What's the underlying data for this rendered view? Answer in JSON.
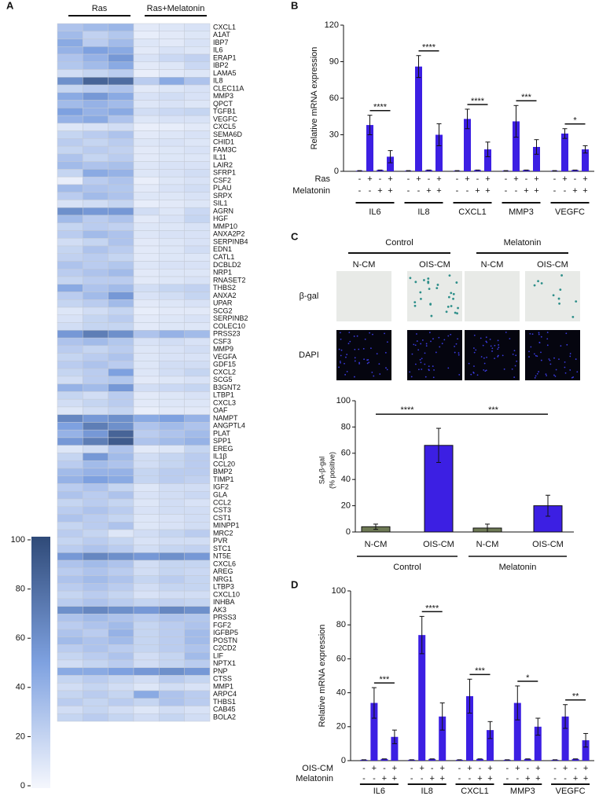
{
  "chart_data": [
    {
      "type": "heatmap",
      "panel": "A",
      "column_groups": [
        "Ras",
        "Ras+Melatonin"
      ],
      "rows": [
        "CXCL1",
        "A1AT",
        "IBP7",
        "IL6",
        "ERAP1",
        "IBP2",
        "LAMA5",
        "IL8",
        "CLEC11A",
        "MMP3",
        "QPCT",
        "TGFB1",
        "VEGFC",
        "CXCL5",
        "SEMA6D",
        "CHID1",
        "FAM3C",
        "IL11",
        "LAIR2",
        "SFRP1",
        "CSF2",
        "PLAU",
        "SRPX",
        "SIL1",
        "AGRN",
        "HGF",
        "MMP10",
        "ANXA2P2",
        "SERPINB4",
        "EDN1",
        "CATL1",
        "DCBLD2",
        "NRP1",
        "RNASET2",
        "THBS2",
        "ANXA2",
        "UPAR",
        "SCG2",
        "SERPINB2",
        "COLEC10",
        "PRSS23",
        "CSF3",
        "MMP9",
        "VEGFA",
        "GDF15",
        "CXCL2",
        "SCG5",
        "B3GNT2",
        "LTBP1",
        "CXCL3",
        "OAF",
        "NAMPT",
        "ANGPTL4",
        "PLAT",
        "SPP1",
        "EREG",
        "IL1β",
        "CCL20",
        "BMP2",
        "TIMP1",
        "IGF2",
        "GLA",
        "CCL2",
        "CST3",
        "CST1",
        "MINPP1",
        "MRC2",
        "PVR",
        "STC1",
        "NT5E",
        "CXCL6",
        "AREG",
        "NRG1",
        "LTBP3",
        "CXCL10",
        "INHBA",
        "AK3",
        "PRSS3",
        "FGF2",
        "IGFBP5",
        "POSTN",
        "C2CD2",
        "LIF",
        "NPTX1",
        "PNP",
        "CTSS",
        "MMP1",
        "ARPC4",
        "THBS1",
        "CAB45",
        "BOLA2"
      ],
      "values": [
        [
          30,
          35,
          38,
          8,
          10,
          12
        ],
        [
          35,
          22,
          28,
          6,
          8,
          10
        ],
        [
          45,
          25,
          35,
          10,
          8,
          12
        ],
        [
          40,
          50,
          45,
          8,
          12,
          10
        ],
        [
          30,
          40,
          55,
          12,
          18,
          22
        ],
        [
          28,
          35,
          45,
          8,
          10,
          18
        ],
        [
          15,
          20,
          25,
          5,
          8,
          10
        ],
        [
          60,
          85,
          80,
          25,
          45,
          30
        ],
        [
          20,
          25,
          30,
          8,
          10,
          12
        ],
        [
          45,
          55,
          45,
          12,
          15,
          12
        ],
        [
          35,
          40,
          35,
          10,
          12,
          10
        ],
        [
          50,
          40,
          45,
          15,
          18,
          20
        ],
        [
          40,
          45,
          30,
          10,
          12,
          12
        ],
        [
          10,
          12,
          15,
          5,
          6,
          8
        ],
        [
          20,
          25,
          30,
          8,
          10,
          12
        ],
        [
          25,
          20,
          25,
          10,
          12,
          10
        ],
        [
          20,
          25,
          22,
          8,
          10,
          12
        ],
        [
          30,
          20,
          25,
          8,
          10,
          10
        ],
        [
          35,
          30,
          32,
          10,
          12,
          12
        ],
        [
          20,
          45,
          40,
          10,
          12,
          15
        ],
        [
          5,
          25,
          30,
          5,
          10,
          12
        ],
        [
          35,
          30,
          28,
          8,
          12,
          15
        ],
        [
          25,
          35,
          30,
          10,
          10,
          12
        ],
        [
          12,
          15,
          20,
          6,
          8,
          10
        ],
        [
          60,
          55,
          55,
          15,
          10,
          18
        ],
        [
          35,
          25,
          30,
          8,
          12,
          20
        ],
        [
          20,
          25,
          22,
          10,
          10,
          12
        ],
        [
          25,
          35,
          30,
          10,
          12,
          12
        ],
        [
          15,
          20,
          30,
          8,
          10,
          12
        ],
        [
          20,
          30,
          25,
          8,
          10,
          15
        ],
        [
          22,
          25,
          20,
          8,
          10,
          10
        ],
        [
          30,
          25,
          28,
          10,
          12,
          12
        ],
        [
          25,
          30,
          35,
          8,
          10,
          10
        ],
        [
          20,
          25,
          25,
          8,
          10,
          12
        ],
        [
          45,
          30,
          35,
          15,
          20,
          22
        ],
        [
          25,
          35,
          55,
          12,
          15,
          20
        ],
        [
          20,
          25,
          35,
          8,
          10,
          12
        ],
        [
          10,
          15,
          20,
          6,
          8,
          8
        ],
        [
          12,
          20,
          25,
          8,
          10,
          12
        ],
        [
          15,
          20,
          20,
          8,
          10,
          10
        ],
        [
          55,
          70,
          60,
          30,
          40,
          35
        ],
        [
          30,
          35,
          28,
          12,
          15,
          12
        ],
        [
          25,
          20,
          25,
          10,
          12,
          15
        ],
        [
          20,
          25,
          30,
          10,
          12,
          12
        ],
        [
          25,
          30,
          25,
          10,
          15,
          15
        ],
        [
          20,
          25,
          50,
          10,
          15,
          20
        ],
        [
          15,
          25,
          28,
          8,
          10,
          12
        ],
        [
          40,
          35,
          55,
          15,
          18,
          20
        ],
        [
          20,
          15,
          25,
          8,
          10,
          12
        ],
        [
          15,
          20,
          25,
          8,
          10,
          10
        ],
        [
          10,
          15,
          20,
          5,
          8,
          8
        ],
        [
          65,
          55,
          60,
          45,
          50,
          40
        ],
        [
          50,
          70,
          60,
          30,
          35,
          30
        ],
        [
          40,
          55,
          85,
          25,
          30,
          35
        ],
        [
          55,
          70,
          90,
          30,
          35,
          40
        ],
        [
          10,
          15,
          30,
          8,
          10,
          20
        ],
        [
          20,
          55,
          35,
          15,
          20,
          25
        ],
        [
          25,
          35,
          30,
          15,
          20,
          25
        ],
        [
          35,
          40,
          40,
          20,
          25,
          25
        ],
        [
          40,
          50,
          45,
          20,
          25,
          22
        ],
        [
          25,
          30,
          20,
          10,
          15,
          15
        ],
        [
          30,
          25,
          30,
          12,
          15,
          18
        ],
        [
          20,
          25,
          20,
          10,
          15,
          12
        ],
        [
          25,
          30,
          25,
          12,
          15,
          15
        ],
        [
          30,
          25,
          20,
          10,
          12,
          15
        ],
        [
          20,
          25,
          30,
          10,
          12,
          15
        ],
        [
          25,
          20,
          10,
          15,
          20,
          25
        ],
        [
          20,
          25,
          20,
          12,
          15,
          15
        ],
        [
          25,
          30,
          25,
          15,
          20,
          22
        ],
        [
          55,
          65,
          60,
          55,
          60,
          55
        ],
        [
          30,
          35,
          30,
          15,
          20,
          20
        ],
        [
          25,
          30,
          25,
          15,
          20,
          18
        ],
        [
          30,
          35,
          30,
          20,
          25,
          20
        ],
        [
          25,
          30,
          25,
          15,
          20,
          20
        ],
        [
          20,
          25,
          20,
          12,
          15,
          15
        ],
        [
          25,
          30,
          25,
          20,
          22,
          20
        ],
        [
          60,
          65,
          60,
          55,
          65,
          60
        ],
        [
          30,
          35,
          30,
          25,
          30,
          28
        ],
        [
          25,
          30,
          35,
          20,
          25,
          30
        ],
        [
          30,
          25,
          40,
          20,
          25,
          35
        ],
        [
          35,
          30,
          35,
          20,
          25,
          35
        ],
        [
          25,
          30,
          25,
          20,
          25,
          30
        ],
        [
          20,
          25,
          30,
          15,
          20,
          35
        ],
        [
          15,
          20,
          25,
          15,
          20,
          25
        ],
        [
          45,
          45,
          50,
          55,
          60,
          55
        ],
        [
          20,
          25,
          20,
          15,
          25,
          20
        ],
        [
          15,
          20,
          15,
          10,
          15,
          12
        ],
        [
          20,
          25,
          20,
          45,
          30,
          25
        ],
        [
          25,
          20,
          25,
          20,
          30,
          25
        ],
        [
          15,
          20,
          15,
          10,
          15,
          12
        ],
        [
          20,
          25,
          20,
          15,
          20,
          15
        ]
      ],
      "zlim": [
        0,
        100
      ],
      "colorbar_ticks": [
        0,
        20,
        40,
        60,
        80,
        100
      ],
      "colorscale": [
        "#f5f7fd",
        "#7ea1e0",
        "#2f4a78"
      ]
    },
    {
      "type": "bar",
      "panel": "B",
      "ylabel": "Relative mRNA expression",
      "ylim": [
        0,
        120
      ],
      "yticks": [
        0,
        30,
        60,
        90,
        120
      ],
      "color": "#3c1fe3",
      "conditions": [
        {
          "label": "Ras",
          "signs": [
            "-",
            "+",
            "-",
            "+"
          ]
        },
        {
          "label": "Melatonin",
          "signs": [
            "-",
            "-",
            "+",
            "+"
          ]
        }
      ],
      "groups": [
        {
          "label": "IL6",
          "values": [
            0.5,
            38,
            1,
            12
          ],
          "errors": [
            0,
            8,
            0,
            5
          ],
          "significance": "****"
        },
        {
          "label": "IL8",
          "values": [
            0.5,
            86,
            1,
            30
          ],
          "errors": [
            0,
            9,
            0,
            9
          ],
          "significance": "****"
        },
        {
          "label": "CXCL1",
          "values": [
            0.5,
            43,
            1,
            18
          ],
          "errors": [
            0,
            8,
            0,
            6
          ],
          "significance": "****"
        },
        {
          "label": "MMP3",
          "values": [
            0.5,
            41,
            1,
            20
          ],
          "errors": [
            0,
            13,
            0,
            6
          ],
          "significance": "***"
        },
        {
          "label": "VEGFC",
          "values": [
            0.5,
            31,
            1,
            18
          ],
          "errors": [
            0,
            4,
            0,
            3
          ],
          "significance": "*"
        }
      ]
    },
    {
      "type": "bar",
      "panel": "C",
      "image_groups": [
        {
          "label": "Control",
          "items": [
            "N-CM",
            "OIS-CM"
          ]
        },
        {
          "label": "Melatonin",
          "items": [
            "N-CM",
            "OIS-CM"
          ]
        }
      ],
      "image_rows": [
        "β-gal",
        "DAPI"
      ],
      "ylabel": [
        "SA-β-gal",
        "(% positive)"
      ],
      "categories": [
        "N-CM",
        "OIS-CM",
        "N-CM",
        "OIS-CM"
      ],
      "groups": [
        "Control",
        "Melatonin"
      ],
      "values": [
        4,
        66,
        3,
        20
      ],
      "errors": [
        2,
        13,
        3,
        8
      ],
      "colors": [
        "#6e7a55",
        "#3c1fe3",
        "#6e7a55",
        "#3c1fe3"
      ],
      "ylim": [
        0,
        100
      ],
      "yticks": [
        0,
        20,
        40,
        60,
        80,
        100
      ],
      "comparisons": [
        {
          "between": [
            0,
            1
          ],
          "label": "****"
        },
        {
          "between": [
            1,
            3
          ],
          "label": "***"
        }
      ]
    },
    {
      "type": "bar",
      "panel": "D",
      "ylabel": "Relative mRNA expression",
      "ylim": [
        0,
        100
      ],
      "yticks": [
        0,
        20,
        40,
        60,
        80,
        100
      ],
      "color": "#3c1fe3",
      "conditions": [
        {
          "label": "OIS-CM",
          "signs": [
            "-",
            "+",
            "-",
            "+"
          ]
        },
        {
          "label": "Melatonin",
          "signs": [
            "-",
            "-",
            "+",
            "+"
          ]
        }
      ],
      "groups": [
        {
          "label": "IL6",
          "values": [
            0.5,
            34,
            1,
            14
          ],
          "errors": [
            0,
            9,
            0,
            4
          ],
          "significance": "***"
        },
        {
          "label": "IL8",
          "values": [
            0.5,
            74,
            1,
            26
          ],
          "errors": [
            0,
            11,
            0,
            8
          ],
          "significance": "****"
        },
        {
          "label": "CXCL1",
          "values": [
            0.5,
            38,
            1,
            18
          ],
          "errors": [
            0,
            10,
            0,
            5
          ],
          "significance": "***"
        },
        {
          "label": "MMP3",
          "values": [
            0.5,
            34,
            1,
            20
          ],
          "errors": [
            0,
            10,
            0,
            5
          ],
          "significance": "*"
        },
        {
          "label": "VEGFC",
          "values": [
            0.5,
            26,
            1,
            12
          ],
          "errors": [
            0,
            7,
            0,
            4
          ],
          "significance": "**"
        }
      ]
    }
  ]
}
